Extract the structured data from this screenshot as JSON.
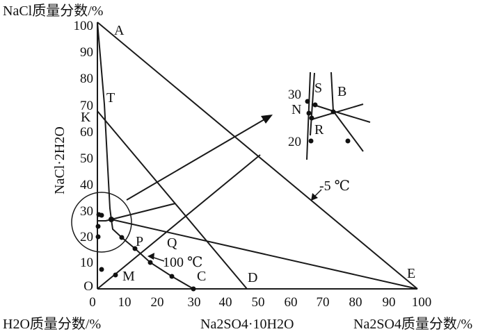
{
  "axes": {
    "y_title": "NaCl质量分数/%",
    "x_left_title": "H2O质量分数/%",
    "x_mid_title": "Na2SO4·10H2O",
    "x_right_title": "Na2SO4质量分数/%",
    "side_label": "NaCl·2H2O",
    "x_ticks": [
      "0",
      "10",
      "20",
      "30",
      "40",
      "50",
      "60",
      "70",
      "80",
      "90",
      "100"
    ],
    "y_ticks": [
      "O",
      "10",
      "20",
      "30",
      "40",
      "50",
      "60",
      "70",
      "80",
      "90",
      "100"
    ]
  },
  "points": {
    "A": "A",
    "T": "T",
    "K": "K",
    "P": "P",
    "Q": "Q",
    "M": "M",
    "C": "C",
    "D": "D",
    "E": "E"
  },
  "annotations": {
    "t100": "100 ℃",
    "tneg5": "-5 ℃"
  },
  "inset": {
    "ticks": [
      "30",
      "20"
    ],
    "labels": {
      "S": "S",
      "B": "B",
      "N": "N",
      "R": "R"
    }
  }
}
